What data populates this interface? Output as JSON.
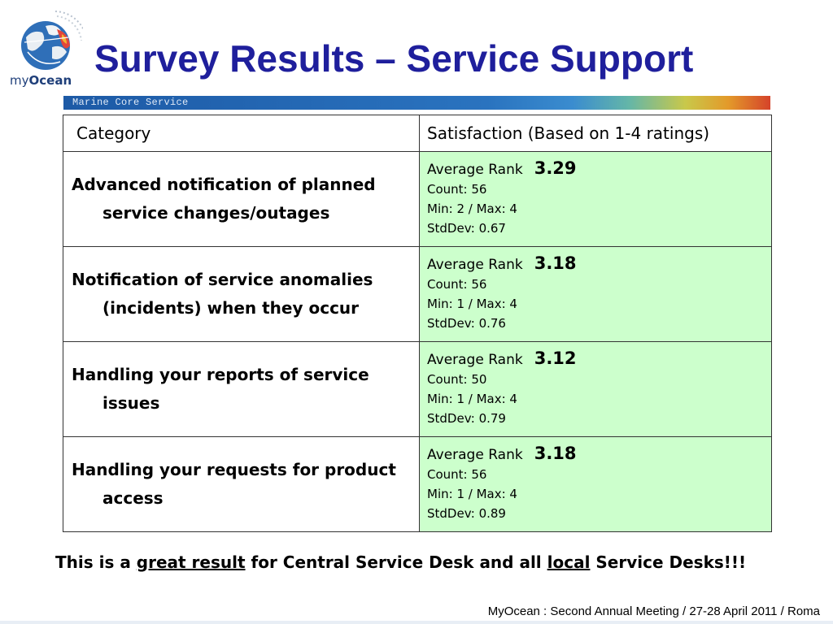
{
  "logo": {
    "text_my": "my",
    "text_ocean": "Ocean"
  },
  "title": "Survey Results – Service Support",
  "banner": {
    "text": "Marine Core Service"
  },
  "table": {
    "headers": [
      "Category",
      "Satisfaction (Based on 1-4 ratings)"
    ],
    "rows": [
      {
        "category_line1": "Advanced notification of planned",
        "category_line2": "service changes/outages",
        "average_label": "Average Rank",
        "average_value": "3.29",
        "count": "Count: 56",
        "minmax": "Min: 2 / Max: 4",
        "stddev": "StdDev: 0.67"
      },
      {
        "category_line1": "Notification of service anomalies",
        "category_line2": "(incidents) when they occur",
        "average_label": "Average Rank",
        "average_value": "3.18",
        "count": "Count: 56",
        "minmax": "Min: 1 / Max: 4",
        "stddev": "StdDev: 0.76"
      },
      {
        "category_line1": "Handling your reports of service",
        "category_line2": "issues",
        "average_label": "Average Rank",
        "average_value": "3.12",
        "count": "Count: 50",
        "minmax": "Min: 1 / Max: 4",
        "stddev": "StdDev: 0.79"
      },
      {
        "category_line1": "Handling your requests for product",
        "category_line2": "access",
        "average_label": "Average Rank",
        "average_value": "3.18",
        "count": "Count: 56",
        "minmax": "Min: 1 / Max: 4",
        "stddev": "StdDev: 0.89"
      }
    ]
  },
  "footer_note": {
    "part1": "This is a ",
    "emph1": "great result",
    "part2": " for Central Service Desk and all ",
    "emph2": "local",
    "part3": " Service Desks!!!"
  },
  "meeting": "MyOcean : Second Annual Meeting / 27-28 April 2011 / Roma",
  "colors": {
    "title": "#1f1f9c",
    "stats_background": "#ccffcc",
    "banner": "#1d5aa6"
  }
}
